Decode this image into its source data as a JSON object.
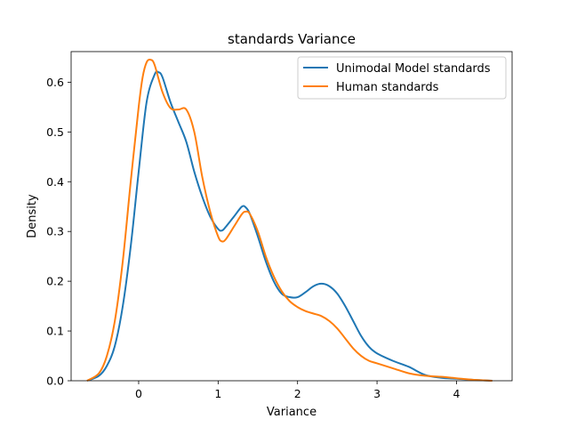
{
  "chart_data": {
    "type": "line",
    "title": "standards Variance",
    "xlabel": "Variance",
    "ylabel": "Density",
    "xlim": [
      -0.85,
      4.7
    ],
    "ylim": [
      0,
      0.6615
    ],
    "xticks": [
      0,
      1,
      2,
      3,
      4
    ],
    "yticks": [
      0.0,
      0.1,
      0.2,
      0.3,
      0.4,
      0.5,
      0.6
    ],
    "xtick_labels": [
      "0",
      "1",
      "2",
      "3",
      "4"
    ],
    "ytick_labels": [
      "0.0",
      "0.1",
      "0.2",
      "0.3",
      "0.4",
      "0.5",
      "0.6"
    ],
    "grid": false,
    "legend_position": "top-right",
    "series": [
      {
        "name": "Unimodal Model standards",
        "color": "#1f77b4",
        "x": [
          -0.65,
          -0.5,
          -0.4,
          -0.3,
          -0.2,
          -0.1,
          0.0,
          0.1,
          0.2,
          0.25,
          0.3,
          0.4,
          0.5,
          0.6,
          0.7,
          0.8,
          0.9,
          1.0,
          1.05,
          1.1,
          1.2,
          1.3,
          1.35,
          1.4,
          1.5,
          1.6,
          1.7,
          1.8,
          1.9,
          2.0,
          2.1,
          2.2,
          2.3,
          2.4,
          2.5,
          2.6,
          2.7,
          2.8,
          2.9,
          3.0,
          3.2,
          3.4,
          3.6,
          3.8,
          4.0,
          4.2,
          4.45
        ],
        "y": [
          0.0,
          0.01,
          0.03,
          0.07,
          0.15,
          0.27,
          0.42,
          0.56,
          0.615,
          0.62,
          0.61,
          0.56,
          0.52,
          0.48,
          0.42,
          0.37,
          0.33,
          0.305,
          0.302,
          0.31,
          0.33,
          0.35,
          0.348,
          0.335,
          0.29,
          0.24,
          0.2,
          0.175,
          0.168,
          0.168,
          0.178,
          0.19,
          0.195,
          0.19,
          0.175,
          0.15,
          0.12,
          0.09,
          0.068,
          0.055,
          0.04,
          0.028,
          0.012,
          0.006,
          0.004,
          0.002,
          0.0
        ]
      },
      {
        "name": "Human standards",
        "color": "#ff7f0e",
        "x": [
          -0.65,
          -0.5,
          -0.4,
          -0.3,
          -0.2,
          -0.1,
          0.0,
          0.05,
          0.1,
          0.15,
          0.2,
          0.3,
          0.4,
          0.5,
          0.6,
          0.7,
          0.8,
          0.9,
          1.0,
          1.05,
          1.1,
          1.2,
          1.3,
          1.35,
          1.4,
          1.5,
          1.6,
          1.7,
          1.8,
          1.9,
          2.0,
          2.1,
          2.2,
          2.3,
          2.4,
          2.5,
          2.6,
          2.7,
          2.8,
          2.9,
          3.0,
          3.2,
          3.4,
          3.6,
          3.8,
          4.0,
          4.2,
          4.45
        ],
        "y": [
          0.0,
          0.015,
          0.05,
          0.12,
          0.24,
          0.4,
          0.55,
          0.61,
          0.64,
          0.645,
          0.635,
          0.58,
          0.548,
          0.545,
          0.545,
          0.5,
          0.41,
          0.34,
          0.29,
          0.28,
          0.285,
          0.31,
          0.335,
          0.34,
          0.335,
          0.3,
          0.25,
          0.21,
          0.18,
          0.16,
          0.148,
          0.14,
          0.135,
          0.13,
          0.12,
          0.105,
          0.085,
          0.065,
          0.05,
          0.04,
          0.035,
          0.025,
          0.015,
          0.01,
          0.008,
          0.005,
          0.002,
          0.0
        ]
      }
    ]
  }
}
